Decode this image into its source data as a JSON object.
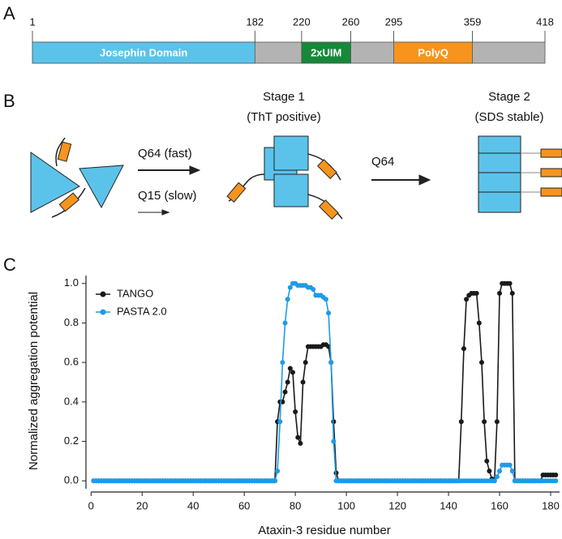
{
  "panel_labels": [
    "A",
    "B",
    "C"
  ],
  "domain_map": {
    "xlim": [
      1,
      418
    ],
    "ticks": [
      1,
      182,
      220,
      260,
      295,
      359,
      418
    ],
    "backbone_color": "#b3b3b3",
    "domains": [
      {
        "label": "Josephin Domain",
        "start": 1,
        "end": 182,
        "color": "#5bc3ea"
      },
      {
        "label": "2xUIM",
        "start": 220,
        "end": 260,
        "color": "#16883a"
      },
      {
        "label": "PolyQ",
        "start": 295,
        "end": 359,
        "color": "#f7941d"
      }
    ]
  },
  "scheme": {
    "fast_label": "Q64 (fast)",
    "slow_label": "Q15 (slow)",
    "stage1_title": "Stage 1",
    "stage1_subtitle": "(ThT positive)",
    "step2_label": "Q64",
    "stage2_title": "Stage 2",
    "stage2_subtitle": "(SDS stable)"
  },
  "chart_data": {
    "type": "line",
    "xlabel": "Ataxin-3 residue number",
    "ylabel": "Normalized aggregation potential",
    "xlim": [
      -2,
      183.5
    ],
    "ylim": [
      -0.04,
      1.04
    ],
    "xticks": [
      0,
      20,
      40,
      60,
      80,
      100,
      120,
      140,
      160,
      180
    ],
    "yticks": [
      {
        "value": 0,
        "label": "0.0"
      },
      {
        "value": 0.2,
        "label": "0.2"
      },
      {
        "value": 0.4,
        "label": "0.4"
      },
      {
        "value": 0.6,
        "label": "0.6"
      },
      {
        "value": 0.8,
        "label": "0.8"
      },
      {
        "value": 1,
        "label": "1.0"
      }
    ],
    "legend": "upper left",
    "x": [
      1,
      2,
      3,
      4,
      5,
      6,
      7,
      8,
      9,
      10,
      11,
      12,
      13,
      14,
      15,
      16,
      17,
      18,
      19,
      20,
      21,
      22,
      23,
      24,
      25,
      26,
      27,
      28,
      29,
      30,
      31,
      32,
      33,
      34,
      35,
      36,
      37,
      38,
      39,
      40,
      41,
      42,
      43,
      44,
      45,
      46,
      47,
      48,
      49,
      50,
      51,
      52,
      53,
      54,
      55,
      56,
      57,
      58,
      59,
      60,
      61,
      62,
      63,
      64,
      65,
      66,
      67,
      68,
      69,
      70,
      71,
      72,
      73,
      74,
      75,
      76,
      77,
      78,
      79,
      80,
      81,
      82,
      83,
      84,
      85,
      86,
      87,
      88,
      89,
      90,
      91,
      92,
      93,
      94,
      95,
      96,
      97,
      98,
      99,
      100,
      101,
      102,
      103,
      104,
      105,
      106,
      107,
      108,
      109,
      110,
      111,
      112,
      113,
      114,
      115,
      116,
      117,
      118,
      119,
      120,
      121,
      122,
      123,
      124,
      125,
      126,
      127,
      128,
      129,
      130,
      131,
      132,
      133,
      134,
      135,
      136,
      137,
      138,
      139,
      140,
      141,
      142,
      143,
      144,
      145,
      146,
      147,
      148,
      149,
      150,
      151,
      152,
      153,
      154,
      155,
      156,
      157,
      158,
      159,
      160,
      161,
      162,
      163,
      164,
      165,
      166,
      167,
      168,
      169,
      170,
      171,
      172,
      173,
      174,
      175,
      176,
      177,
      178,
      179,
      180,
      181,
      182
    ],
    "series": [
      {
        "name": "TANGO",
        "color": "#1a1a1a",
        "values": [
          0,
          0,
          0,
          0,
          0,
          0,
          0,
          0,
          0,
          0,
          0,
          0,
          0,
          0,
          0,
          0,
          0,
          0,
          0,
          0,
          0,
          0,
          0,
          0,
          0,
          0,
          0,
          0,
          0,
          0,
          0,
          0,
          0,
          0,
          0,
          0,
          0,
          0,
          0,
          0,
          0,
          0,
          0,
          0,
          0,
          0,
          0,
          0,
          0,
          0,
          0,
          0,
          0,
          0,
          0,
          0,
          0,
          0,
          0,
          0,
          0,
          0,
          0,
          0,
          0,
          0,
          0,
          0,
          0,
          0,
          0,
          0,
          0.3,
          0.4,
          0.4,
          0.45,
          0.5,
          0.57,
          0.55,
          0.35,
          0.22,
          0.19,
          0.5,
          0.6,
          0.68,
          0.68,
          0.68,
          0.68,
          0.68,
          0.68,
          0.69,
          0.69,
          0.68,
          0.6,
          0.3,
          0.04,
          0,
          0,
          0,
          0,
          0,
          0,
          0,
          0,
          0,
          0,
          0,
          0,
          0,
          0,
          0,
          0,
          0,
          0,
          0,
          0,
          0,
          0,
          0,
          0,
          0,
          0,
          0,
          0,
          0,
          0,
          0,
          0,
          0,
          0,
          0,
          0,
          0,
          0,
          0,
          0,
          0,
          0,
          0,
          0,
          0,
          0,
          0,
          0,
          0.3,
          0.67,
          0.92,
          0.94,
          0.95,
          0.95,
          0.95,
          0.8,
          0.6,
          0.3,
          0.1,
          0.05,
          0.01,
          0,
          0.3,
          0.95,
          1,
          1,
          1,
          1,
          0.95,
          0,
          0,
          0,
          0,
          0,
          0,
          0,
          0,
          0,
          0,
          0,
          0.03,
          0.03,
          0.03,
          0.03,
          0.03,
          0.03
        ]
      },
      {
        "name": "PASTA 2.0",
        "color": "#1e9be8",
        "values": [
          0,
          0,
          0,
          0,
          0,
          0,
          0,
          0,
          0,
          0,
          0,
          0,
          0,
          0,
          0,
          0,
          0,
          0,
          0,
          0,
          0,
          0,
          0,
          0,
          0,
          0,
          0,
          0,
          0,
          0,
          0,
          0,
          0,
          0,
          0,
          0,
          0,
          0,
          0,
          0,
          0,
          0,
          0,
          0,
          0,
          0,
          0,
          0,
          0,
          0,
          0,
          0,
          0,
          0,
          0,
          0,
          0,
          0,
          0,
          0,
          0,
          0,
          0,
          0,
          0,
          0,
          0,
          0,
          0,
          0,
          0,
          0,
          0.05,
          0.3,
          0.6,
          0.8,
          0.92,
          0.98,
          1,
          1,
          0.99,
          0.99,
          0.99,
          0.99,
          0.98,
          0.98,
          0.97,
          0.94,
          0.94,
          0.94,
          0.93,
          0.92,
          0.85,
          0.6,
          0.2,
          0,
          0,
          0,
          0,
          0,
          0,
          0,
          0,
          0,
          0,
          0,
          0,
          0,
          0,
          0,
          0,
          0,
          0,
          0,
          0,
          0,
          0,
          0,
          0,
          0,
          0,
          0,
          0,
          0,
          0,
          0,
          0,
          0,
          0,
          0,
          0,
          0,
          0,
          0,
          0,
          0,
          0,
          0,
          0,
          0,
          0,
          0,
          0,
          0,
          0,
          0,
          0,
          0,
          0,
          0,
          0,
          0,
          0,
          0,
          0,
          0,
          0,
          0,
          0.02,
          0.05,
          0.08,
          0.08,
          0.08,
          0.08,
          0.05,
          0,
          0,
          0,
          0,
          0,
          0,
          0,
          0,
          0,
          0,
          0,
          0,
          0,
          0,
          0,
          0,
          0
        ]
      }
    ]
  }
}
